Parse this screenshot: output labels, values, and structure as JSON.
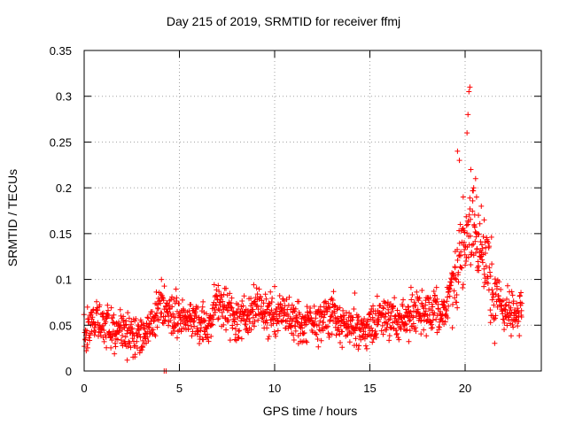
{
  "chart_data": {
    "type": "scatter",
    "title": "Day 215 of 2019, SRMTID for receiver ffmj",
    "xlabel": "GPS time / hours",
    "ylabel": "SRMTID / TECUs",
    "xlim": [
      0,
      24
    ],
    "ylim": [
      0,
      0.35
    ],
    "xticks": [
      "0",
      "5",
      "10",
      "15",
      "20"
    ],
    "yticks": [
      "0",
      "0.05",
      "0.1",
      "0.15",
      "0.2",
      "0.25",
      "0.3",
      "0.35"
    ],
    "grid": true,
    "marker": "+",
    "color": "#ff0000",
    "series": [
      {
        "name": "SRMTID",
        "trend": [
          [
            0.0,
            0.035
          ],
          [
            0.5,
            0.055
          ],
          [
            1.0,
            0.05
          ],
          [
            1.5,
            0.045
          ],
          [
            2.0,
            0.04
          ],
          [
            2.5,
            0.035
          ],
          [
            3.0,
            0.038
          ],
          [
            3.5,
            0.045
          ],
          [
            4.0,
            0.075
          ],
          [
            4.5,
            0.06
          ],
          [
            5.0,
            0.06
          ],
          [
            5.5,
            0.055
          ],
          [
            6.0,
            0.05
          ],
          [
            6.5,
            0.045
          ],
          [
            7.0,
            0.075
          ],
          [
            7.5,
            0.065
          ],
          [
            8.0,
            0.05
          ],
          [
            8.5,
            0.06
          ],
          [
            9.0,
            0.07
          ],
          [
            9.5,
            0.065
          ],
          [
            10.0,
            0.055
          ],
          [
            10.5,
            0.065
          ],
          [
            11.0,
            0.055
          ],
          [
            11.5,
            0.05
          ],
          [
            12.0,
            0.055
          ],
          [
            12.5,
            0.06
          ],
          [
            13.0,
            0.065
          ],
          [
            13.5,
            0.055
          ],
          [
            14.0,
            0.05
          ],
          [
            14.5,
            0.045
          ],
          [
            15.0,
            0.05
          ],
          [
            15.5,
            0.055
          ],
          [
            16.0,
            0.06
          ],
          [
            16.5,
            0.06
          ],
          [
            17.0,
            0.055
          ],
          [
            17.5,
            0.065
          ],
          [
            18.0,
            0.06
          ],
          [
            18.5,
            0.065
          ],
          [
            19.0,
            0.07
          ],
          [
            19.5,
            0.11
          ],
          [
            20.0,
            0.14
          ],
          [
            20.5,
            0.15
          ],
          [
            21.0,
            0.12
          ],
          [
            21.5,
            0.085
          ],
          [
            22.0,
            0.07
          ],
          [
            22.5,
            0.06
          ],
          [
            23.0,
            0.065
          ]
        ],
        "spikes": [
          [
            19.6,
            0.24
          ],
          [
            19.7,
            0.23
          ],
          [
            19.9,
            0.19
          ],
          [
            20.1,
            0.26
          ],
          [
            20.15,
            0.28
          ],
          [
            20.2,
            0.305
          ],
          [
            20.25,
            0.31
          ],
          [
            20.3,
            0.22
          ],
          [
            20.45,
            0.2
          ],
          [
            20.55,
            0.21
          ],
          [
            20.7,
            0.17
          ],
          [
            21.0,
            0.165
          ],
          [
            20.85,
            0.18
          ],
          [
            20.6,
            0.19
          ]
        ],
        "zero_points": [
          [
            4.2,
            0.0
          ],
          [
            4.3,
            0.0
          ]
        ]
      }
    ]
  }
}
